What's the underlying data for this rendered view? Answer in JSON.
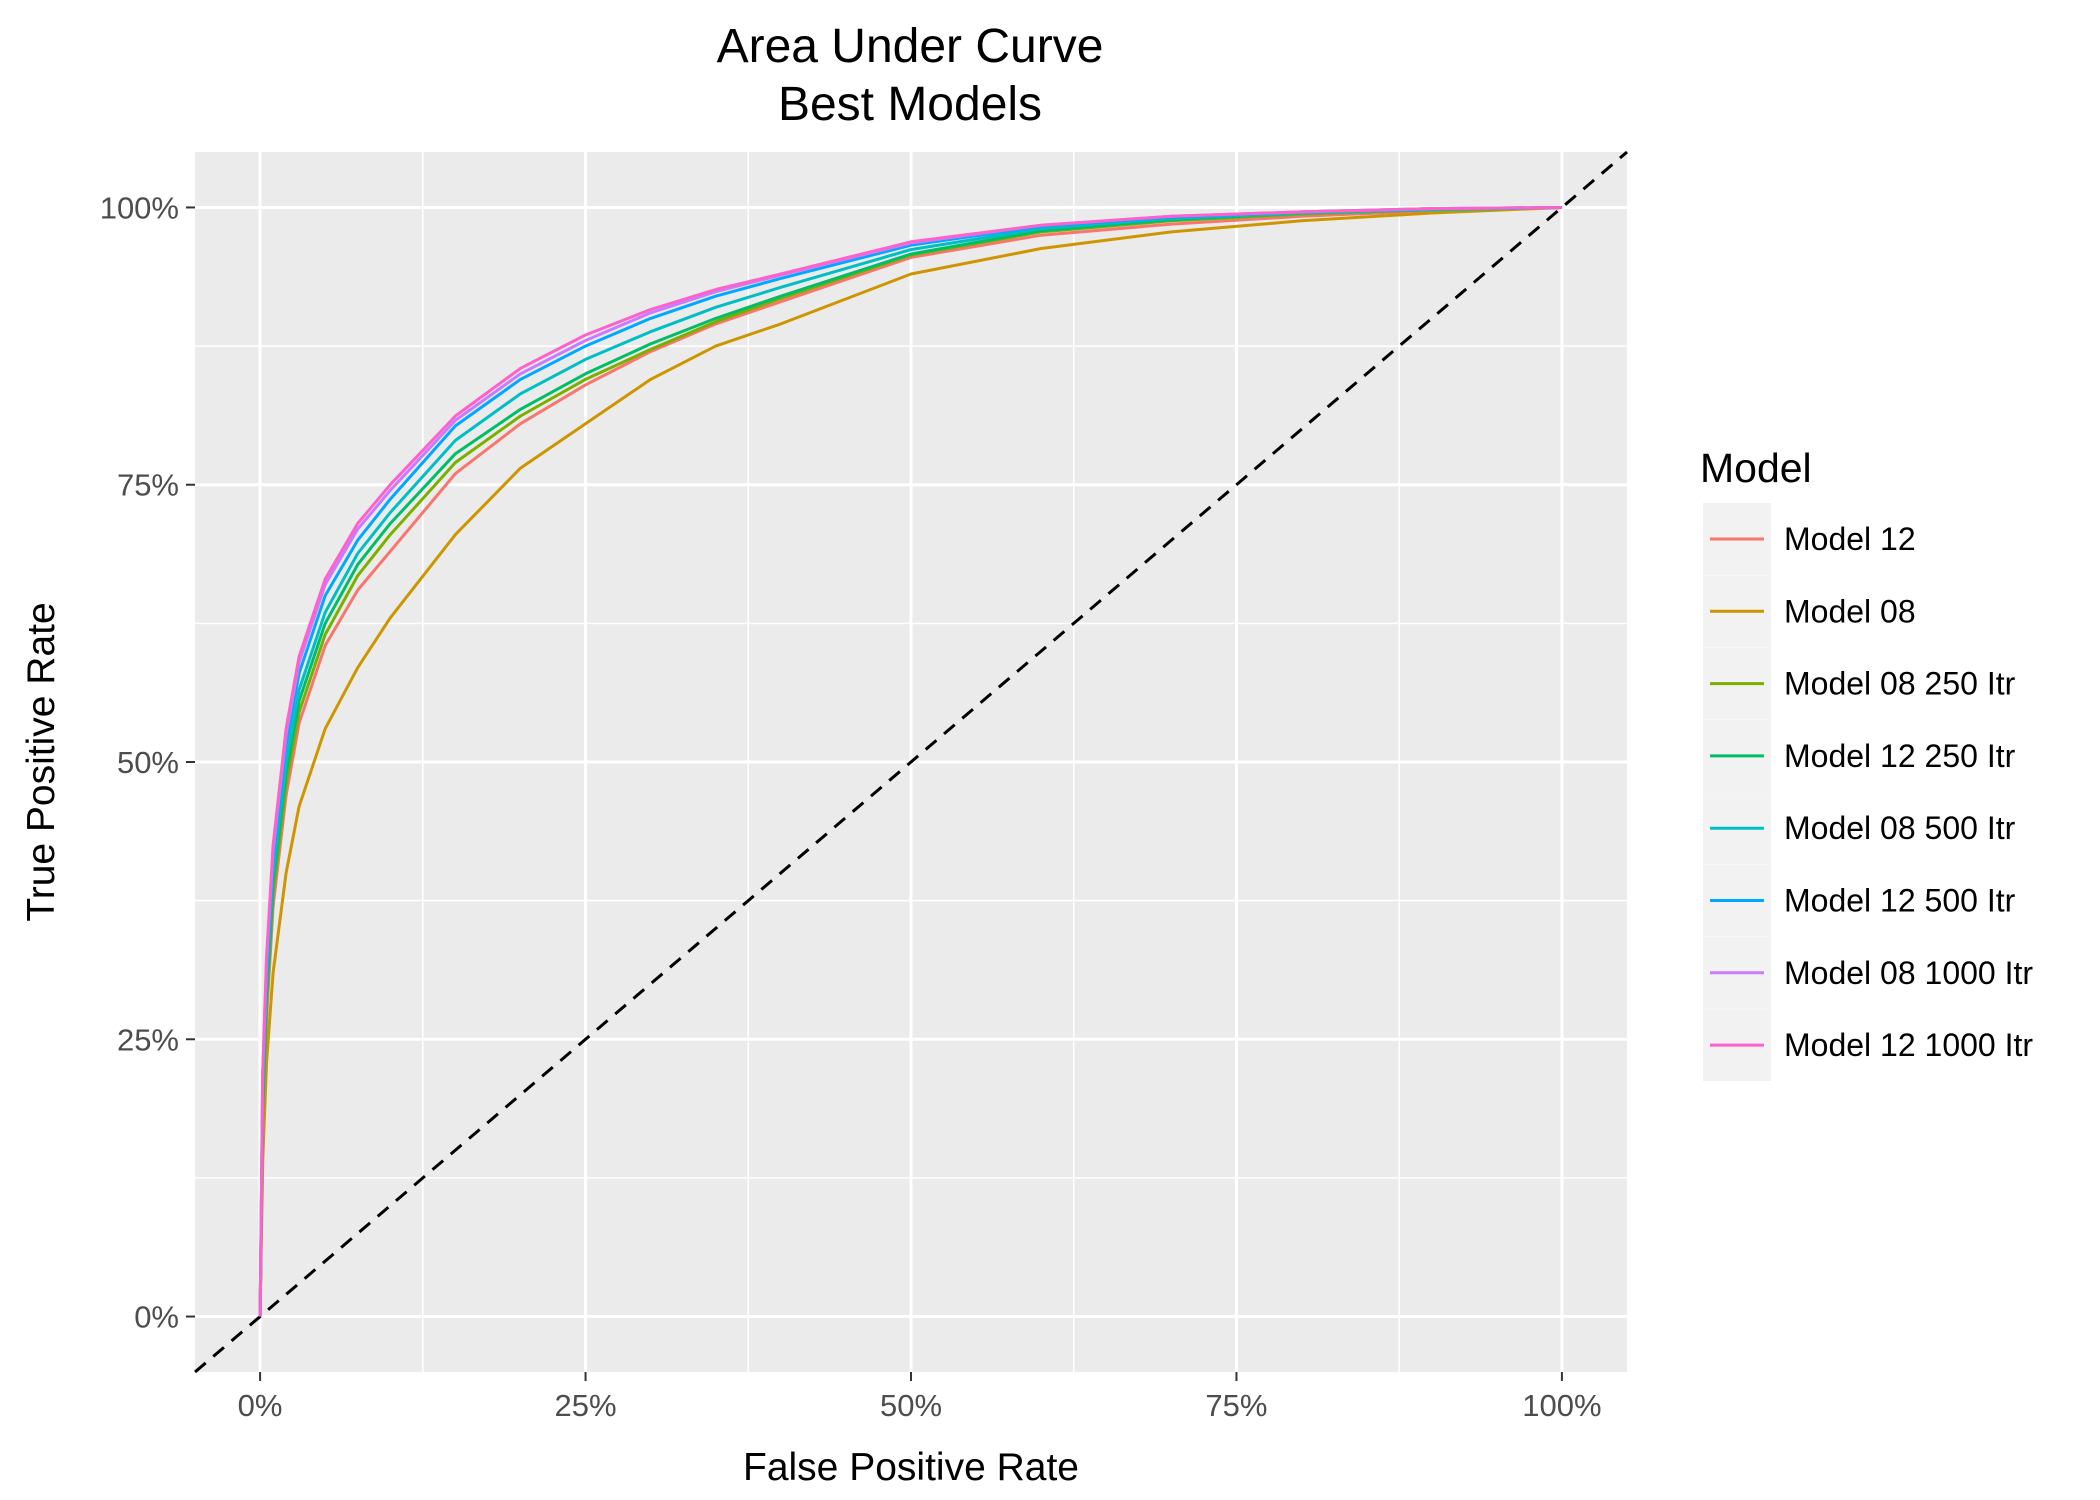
{
  "chart_data": {
    "type": "line",
    "title": "Area Under Curve",
    "subtitle": "Best Models",
    "xlabel": "False Positive Rate",
    "ylabel": "True Positive Rate",
    "xlim": [
      -0.05,
      1.05
    ],
    "ylim": [
      -0.05,
      1.05
    ],
    "x_ticks": [
      0,
      0.25,
      0.5,
      0.75,
      1.0
    ],
    "x_tick_labels": [
      "0%",
      "25%",
      "50%",
      "75%",
      "100%"
    ],
    "y_ticks": [
      0,
      0.25,
      0.5,
      0.75,
      1.0
    ],
    "y_tick_labels": [
      "0%",
      "25%",
      "50%",
      "75%",
      "100%"
    ],
    "grid": true,
    "background": "#ebebeb",
    "legend_title": "Model",
    "legend_position": "right",
    "reference_line": {
      "x": [
        -0.05,
        1.05
      ],
      "y": [
        -0.05,
        1.05
      ],
      "style": "dashed",
      "color": "#000000"
    },
    "series": [
      {
        "name": "Model 12",
        "color": "#F8766D",
        "x": [
          0,
          0.002,
          0.005,
          0.01,
          0.02,
          0.03,
          0.05,
          0.075,
          0.1,
          0.15,
          0.2,
          0.25,
          0.3,
          0.35,
          0.4,
          0.5,
          0.6,
          0.7,
          0.8,
          0.9,
          1.0
        ],
        "y": [
          0,
          0.17,
          0.27,
          0.37,
          0.47,
          0.535,
          0.605,
          0.655,
          0.69,
          0.76,
          0.805,
          0.84,
          0.87,
          0.895,
          0.915,
          0.955,
          0.975,
          0.985,
          0.992,
          0.997,
          1.0
        ]
      },
      {
        "name": "Model 08",
        "color": "#CD9600",
        "x": [
          0,
          0.002,
          0.005,
          0.01,
          0.02,
          0.03,
          0.05,
          0.075,
          0.1,
          0.15,
          0.2,
          0.25,
          0.3,
          0.35,
          0.4,
          0.5,
          0.6,
          0.7,
          0.8,
          0.9,
          1.0
        ],
        "y": [
          0,
          0.14,
          0.23,
          0.31,
          0.4,
          0.46,
          0.53,
          0.585,
          0.63,
          0.705,
          0.765,
          0.805,
          0.845,
          0.875,
          0.895,
          0.94,
          0.963,
          0.978,
          0.988,
          0.995,
          1.0
        ]
      },
      {
        "name": "Model 08 250 Itr",
        "color": "#7CAE00",
        "x": [
          0,
          0.002,
          0.005,
          0.01,
          0.02,
          0.03,
          0.05,
          0.075,
          0.1,
          0.15,
          0.2,
          0.25,
          0.3,
          0.35,
          0.4,
          0.5,
          0.6,
          0.7,
          0.8,
          0.9,
          1.0
        ],
        "y": [
          0,
          0.18,
          0.28,
          0.38,
          0.48,
          0.545,
          0.615,
          0.668,
          0.705,
          0.77,
          0.812,
          0.845,
          0.872,
          0.897,
          0.918,
          0.957,
          0.978,
          0.988,
          0.994,
          0.998,
          1.0
        ]
      },
      {
        "name": "Model 12 250 Itr",
        "color": "#00BE67",
        "x": [
          0,
          0.002,
          0.005,
          0.01,
          0.02,
          0.03,
          0.05,
          0.075,
          0.1,
          0.15,
          0.2,
          0.25,
          0.3,
          0.35,
          0.4,
          0.5,
          0.6,
          0.7,
          0.8,
          0.9,
          1.0
        ],
        "y": [
          0,
          0.19,
          0.29,
          0.39,
          0.49,
          0.555,
          0.625,
          0.678,
          0.715,
          0.778,
          0.818,
          0.85,
          0.877,
          0.9,
          0.92,
          0.958,
          0.979,
          0.989,
          0.995,
          0.998,
          1.0
        ]
      },
      {
        "name": "Model 08 500 Itr",
        "color": "#00BFC4",
        "x": [
          0,
          0.002,
          0.005,
          0.01,
          0.02,
          0.03,
          0.05,
          0.075,
          0.1,
          0.15,
          0.2,
          0.25,
          0.3,
          0.35,
          0.4,
          0.5,
          0.6,
          0.7,
          0.8,
          0.9,
          1.0
        ],
        "y": [
          0,
          0.2,
          0.3,
          0.4,
          0.5,
          0.565,
          0.635,
          0.688,
          0.725,
          0.79,
          0.832,
          0.863,
          0.888,
          0.91,
          0.928,
          0.962,
          0.981,
          0.99,
          0.995,
          0.998,
          1.0
        ]
      },
      {
        "name": "Model 12 500 Itr",
        "color": "#00A9FF",
        "x": [
          0,
          0.002,
          0.005,
          0.01,
          0.02,
          0.03,
          0.05,
          0.075,
          0.1,
          0.15,
          0.2,
          0.25,
          0.3,
          0.35,
          0.4,
          0.5,
          0.6,
          0.7,
          0.8,
          0.9,
          1.0
        ],
        "y": [
          0,
          0.21,
          0.31,
          0.41,
          0.515,
          0.58,
          0.65,
          0.7,
          0.737,
          0.803,
          0.845,
          0.875,
          0.9,
          0.92,
          0.936,
          0.966,
          0.983,
          0.991,
          0.996,
          0.999,
          1.0
        ]
      },
      {
        "name": "Model 08 1000 Itr",
        "color": "#C77CFF",
        "x": [
          0,
          0.002,
          0.005,
          0.01,
          0.02,
          0.03,
          0.05,
          0.075,
          0.1,
          0.15,
          0.2,
          0.25,
          0.3,
          0.35,
          0.4,
          0.5,
          0.6,
          0.7,
          0.8,
          0.9,
          1.0
        ],
        "y": [
          0,
          0.22,
          0.32,
          0.42,
          0.525,
          0.59,
          0.66,
          0.71,
          0.745,
          0.808,
          0.85,
          0.88,
          0.905,
          0.924,
          0.939,
          0.968,
          0.984,
          0.992,
          0.996,
          0.999,
          1.0
        ]
      },
      {
        "name": "Model 12 1000 Itr",
        "color": "#FF61CC",
        "x": [
          0,
          0.002,
          0.005,
          0.01,
          0.02,
          0.03,
          0.05,
          0.075,
          0.1,
          0.15,
          0.2,
          0.25,
          0.3,
          0.35,
          0.4,
          0.5,
          0.6,
          0.7,
          0.8,
          0.9,
          1.0
        ],
        "y": [
          0,
          0.22,
          0.325,
          0.425,
          0.53,
          0.595,
          0.665,
          0.715,
          0.75,
          0.812,
          0.855,
          0.885,
          0.908,
          0.926,
          0.94,
          0.969,
          0.984,
          0.992,
          0.996,
          0.999,
          1.0
        ]
      }
    ]
  }
}
